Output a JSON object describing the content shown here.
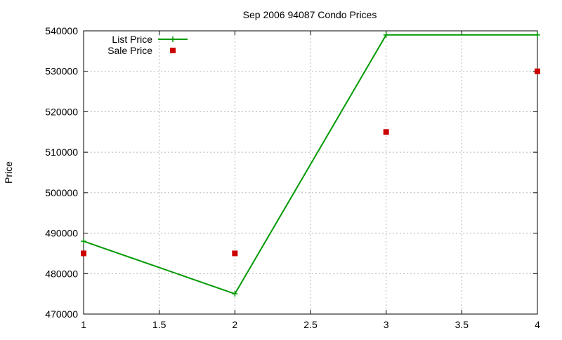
{
  "chart_data": {
    "type": "line",
    "title": "Sep 2006 94087 Condo Prices",
    "xlabel": "",
    "ylabel": "Price",
    "xlim": [
      1,
      4
    ],
    "ylim": [
      470000,
      540000
    ],
    "x_ticks": [
      1,
      1.5,
      2,
      2.5,
      3,
      3.5,
      4
    ],
    "y_ticks": [
      470000,
      480000,
      490000,
      500000,
      510000,
      520000,
      530000,
      540000
    ],
    "x_tick_labels": [
      "1",
      "1.5",
      "2",
      "2.5",
      "3",
      "3.5",
      "4"
    ],
    "y_tick_labels": [
      "470000",
      "480000",
      "490000",
      "500000",
      "510000",
      "520000",
      "530000",
      "540000"
    ],
    "grid": true,
    "legend_position": "top-left",
    "series": [
      {
        "name": "List Price",
        "style": "linespoints",
        "marker": "plus",
        "color": "#009900",
        "x": [
          1,
          2,
          3,
          4
        ],
        "y": [
          488000,
          475000,
          539000,
          539000
        ]
      },
      {
        "name": "Sale Price",
        "style": "points",
        "marker": "square",
        "color": "#cc0000",
        "x": [
          1,
          2,
          3,
          4
        ],
        "y": [
          485000,
          485000,
          515000,
          530000
        ]
      }
    ]
  }
}
